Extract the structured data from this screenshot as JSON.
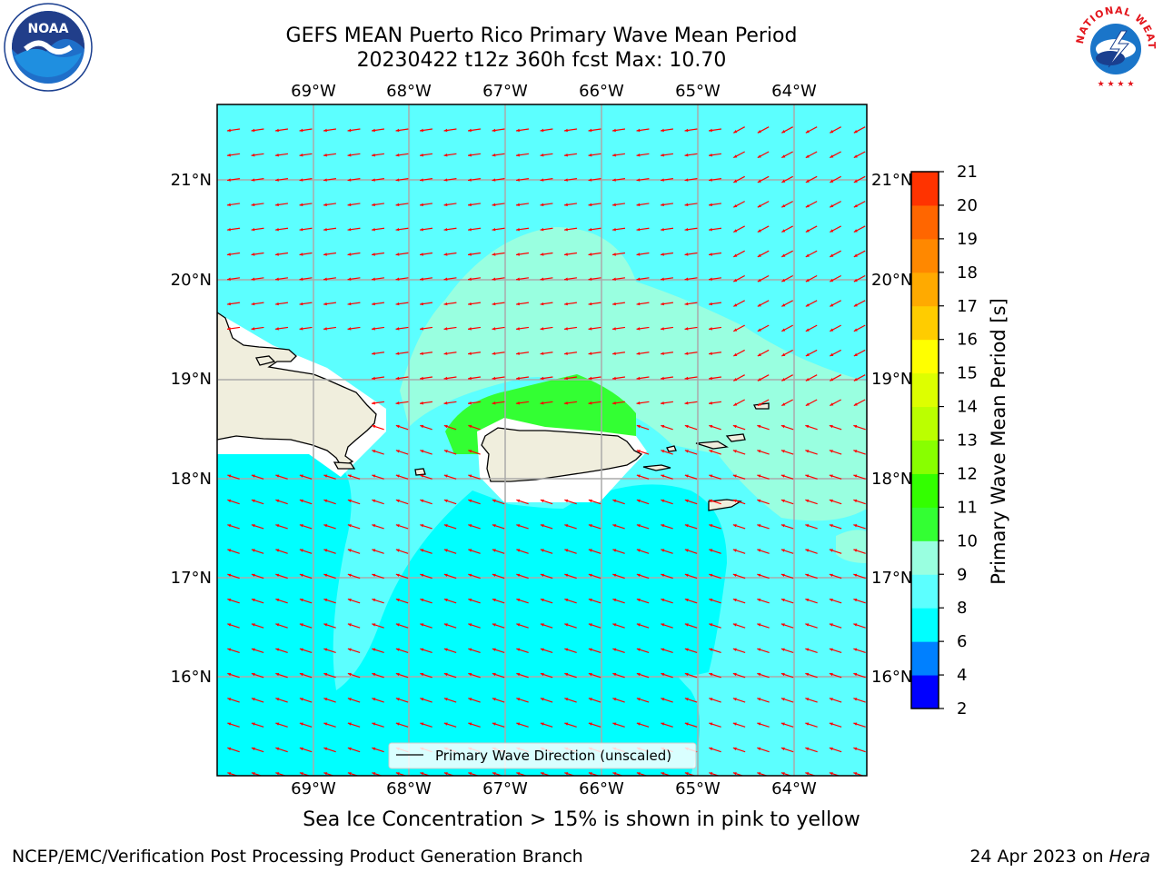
{
  "title": {
    "line1": "GEFS MEAN Puerto Rico Primary Wave Mean Period",
    "line2": "20230422 t12z 360h fcst   Max: 10.70"
  },
  "map": {
    "lon_labels": [
      "69°W",
      "68°W",
      "67°W",
      "66°W",
      "65°W",
      "64°W"
    ],
    "lat_labels": [
      "21°N",
      "20°N",
      "19°N",
      "18°N",
      "17°N",
      "16°N"
    ],
    "legend_label": "Primary Wave Direction (unscaled)",
    "colors": {
      "ocean_low": "#00ffff",
      "ocean_mid": "#5cffff",
      "ocean_high": "#99ffe0",
      "period_10_11": "#33ff33",
      "land": "#f0eedd",
      "arrow": "#ff0000",
      "grid": "#aaaaaa"
    }
  },
  "colorbar": {
    "label": "Primary Wave Mean Period [s]",
    "ticks": [
      "2",
      "4",
      "6",
      "8",
      "9",
      "10",
      "11",
      "12",
      "13",
      "14",
      "15",
      "16",
      "17",
      "18",
      "19",
      "20",
      "21"
    ],
    "colors": [
      "#0000ff",
      "#0080ff",
      "#00ffff",
      "#5cffff",
      "#99ffe0",
      "#33ff33",
      "#33ff00",
      "#88ff00",
      "#bbff00",
      "#ddff00",
      "#ffff00",
      "#ffcc00",
      "#ffaa00",
      "#ff8800",
      "#ff6600",
      "#ff3300",
      "#ff0000"
    ]
  },
  "caption": "Sea Ice Concentration > 15% is shown in pink to yellow",
  "footer": {
    "left": "NCEP/EMC/Verification Post Processing Product Generation Branch",
    "right_prefix": "24 Apr 2023 on ",
    "right_host": "Hera"
  },
  "logos": {
    "noaa_text": "NOAA",
    "nws_text": "NATIONAL WEATHER SERVICE"
  }
}
